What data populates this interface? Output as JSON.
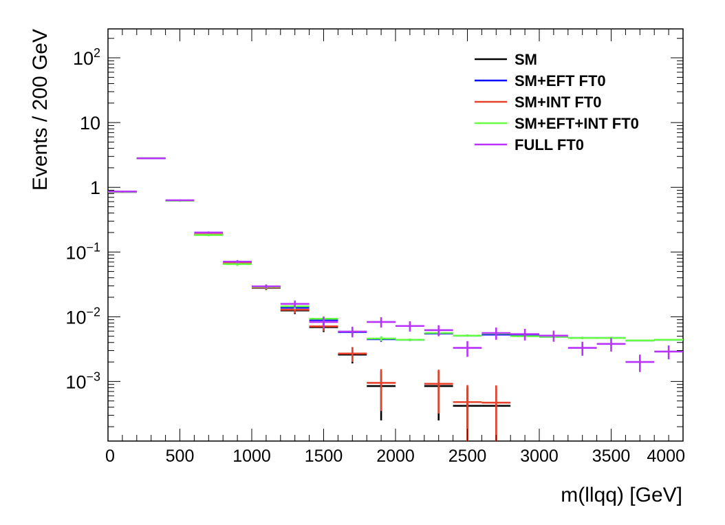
{
  "chart_data": {
    "type": "scatter",
    "xlabel": "m(llqq) [GeV]",
    "ylabel": "Events / 200 GeV",
    "xlim": [
      0,
      4000
    ],
    "ylim": [
      0.00012,
      280
    ],
    "yscale": "log",
    "x_ticks": [
      {
        "value": 0,
        "label": "0"
      },
      {
        "value": 500,
        "label": "500"
      },
      {
        "value": 1000,
        "label": "1000"
      },
      {
        "value": 1500,
        "label": "1500"
      },
      {
        "value": 2000,
        "label": "2000"
      },
      {
        "value": 2500,
        "label": "2500"
      },
      {
        "value": 3000,
        "label": "3000"
      },
      {
        "value": 3500,
        "label": "3500"
      },
      {
        "value": 4000,
        "label": "4000"
      }
    ],
    "y_ticks": [
      {
        "value": 0.001,
        "base": "10",
        "exp": "−3"
      },
      {
        "value": 0.01,
        "base": "10",
        "exp": "−2"
      },
      {
        "value": 0.1,
        "base": "10",
        "exp": "−1"
      },
      {
        "value": 1,
        "base": "1",
        "exp": ""
      },
      {
        "value": 10,
        "base": "10",
        "exp": ""
      },
      {
        "value": 100,
        "base": "10",
        "exp": "2"
      }
    ],
    "bin_width": 200,
    "legend_position": "top-right",
    "series": [
      {
        "name": "SM",
        "color": "#000000",
        "x": [
          100,
          300,
          500,
          700,
          900,
          1100,
          1300,
          1500,
          1700,
          1900,
          2300,
          2500,
          2700
        ],
        "y": [
          0.85,
          2.8,
          0.62,
          0.185,
          0.066,
          0.028,
          0.0125,
          0.0069,
          0.0026,
          0.00085,
          0.00085,
          0.00042,
          0.00042
        ],
        "err": [
          0.03,
          0.06,
          0.02,
          0.008,
          0.004,
          0.002,
          0.0015,
          0.0011,
          0.0007,
          0.0006,
          0.0006,
          0.0004,
          0.0004
        ]
      },
      {
        "name": "SM+EFT FT0",
        "color": "#0000ff",
        "x": [
          100,
          300,
          500,
          700,
          900,
          1100,
          1300,
          1500,
          1700,
          1900,
          2100,
          2300,
          2500,
          2700,
          2900,
          3100,
          3300,
          3500,
          3700,
          3900
        ],
        "y": [
          0.85,
          2.8,
          0.62,
          0.185,
          0.066,
          0.029,
          0.0138,
          0.0089,
          0.0058,
          0.0045,
          0.0044,
          0.0055,
          0.0051,
          0.0053,
          0.0051,
          0.0049,
          0.0047,
          0.0047,
          0.0043,
          0.0044
        ],
        "err": [
          0.03,
          0.06,
          0.02,
          0.008,
          0.004,
          0.002,
          0.0015,
          0.0009,
          0.0005,
          0.0004,
          0.0002,
          0.0003,
          0.0002,
          0.0002,
          0.0002,
          0.0002,
          0.0002,
          0.0002,
          0.0001,
          0.0001
        ]
      },
      {
        "name": "SM+INT FT0",
        "color": "#e8412b",
        "x": [
          100,
          300,
          500,
          700,
          900,
          1100,
          1300,
          1500,
          1700,
          1900,
          2300,
          2500,
          2700
        ],
        "y": [
          0.85,
          2.8,
          0.62,
          0.187,
          0.067,
          0.0285,
          0.0128,
          0.0071,
          0.0027,
          0.00095,
          0.00092,
          0.00048,
          0.00047
        ],
        "err": [
          0.03,
          0.06,
          0.02,
          0.008,
          0.004,
          0.002,
          0.0015,
          0.0011,
          0.0007,
          0.0006,
          0.0006,
          0.0004,
          0.0004
        ]
      },
      {
        "name": "SM+EFT+INT FT0",
        "color": "#66ff44",
        "x": [
          100,
          300,
          500,
          700,
          900,
          1100,
          1300,
          1500,
          1700,
          1900,
          2100,
          2300,
          2500,
          2700,
          2900,
          3100,
          3300,
          3500,
          3700,
          3900
        ],
        "y": [
          0.85,
          2.8,
          0.62,
          0.183,
          0.065,
          0.029,
          0.0145,
          0.0093,
          0.0059,
          0.0046,
          0.0044,
          0.0056,
          0.0051,
          0.0055,
          0.005,
          0.0049,
          0.0047,
          0.0047,
          0.0043,
          0.0044
        ],
        "err": [
          0.03,
          0.06,
          0.02,
          0.008,
          0.004,
          0.002,
          0.0015,
          0.0009,
          0.0005,
          0.0004,
          0.0002,
          0.0003,
          0.0002,
          0.0002,
          0.0002,
          0.0002,
          0.0002,
          0.0002,
          0.0001,
          0.0001
        ]
      },
      {
        "name": "FULL FT0",
        "color": "#b833ff",
        "x": [
          100,
          300,
          500,
          700,
          900,
          1100,
          1300,
          1500,
          1700,
          1900,
          2100,
          2300,
          2500,
          2700,
          2900,
          3100,
          3300,
          3500,
          3700,
          3900
        ],
        "y": [
          0.86,
          2.8,
          0.63,
          0.2,
          0.071,
          0.0295,
          0.0158,
          0.0083,
          0.0059,
          0.0083,
          0.0072,
          0.0062,
          0.0033,
          0.0056,
          0.0054,
          0.0051,
          0.0033,
          0.0038,
          0.002,
          0.0029
        ],
        "err": [
          0.03,
          0.06,
          0.02,
          0.008,
          0.004,
          0.002,
          0.002,
          0.0017,
          0.0011,
          0.0015,
          0.0013,
          0.0012,
          0.0009,
          0.0012,
          0.0011,
          0.001,
          0.0008,
          0.0009,
          0.0006,
          0.0007
        ]
      }
    ]
  }
}
